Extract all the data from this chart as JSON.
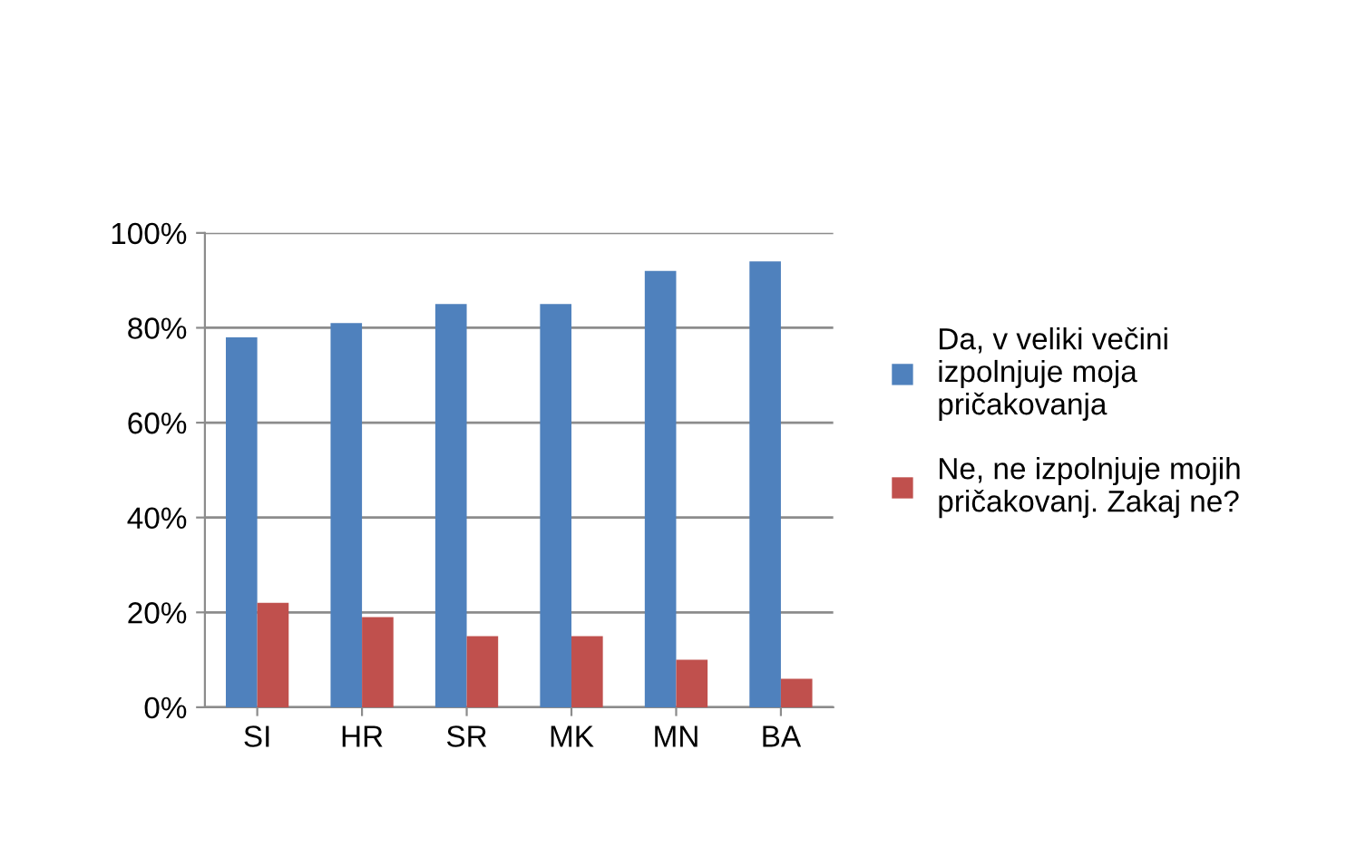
{
  "chart_data": {
    "type": "bar",
    "categories": [
      "SI",
      "HR",
      "SR",
      "MK",
      "MN",
      "BA"
    ],
    "series": [
      {
        "name": "Da, v veliki večini izpolnjuje moja pričakovanja",
        "color": "#4f81bd",
        "values": [
          78,
          81,
          85,
          85,
          92,
          94
        ]
      },
      {
        "name": "Ne, ne izpolnjuje mojih pričakovanj. Zakaj ne?",
        "color": "#c0504d",
        "values": [
          22,
          19,
          15,
          15,
          10,
          6
        ]
      }
    ],
    "ylim": [
      0,
      100
    ],
    "yticks": [
      {
        "value": 0,
        "label": "0%"
      },
      {
        "value": 20,
        "label": "20%"
      },
      {
        "value": 40,
        "label": "40%"
      },
      {
        "value": 60,
        "label": "60%"
      },
      {
        "value": 80,
        "label": "80%"
      },
      {
        "value": 100,
        "label": "100%"
      }
    ],
    "grid": "y",
    "legend": "right"
  }
}
